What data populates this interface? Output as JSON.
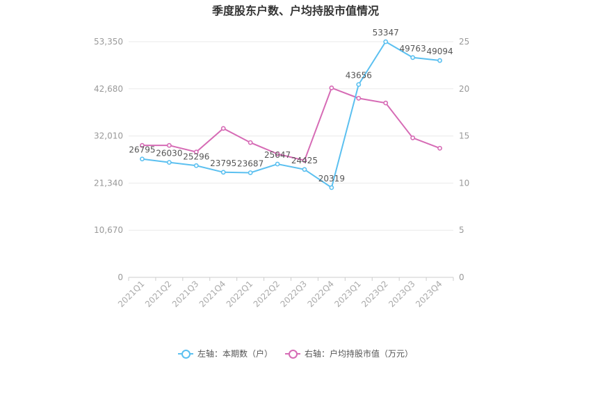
{
  "chart_data": {
    "type": "line",
    "title": "季度股东户数、户均持股市值情况",
    "categories": [
      "2021Q1",
      "2021Q2",
      "2021Q3",
      "2021Q4",
      "2022Q1",
      "2022Q2",
      "2022Q3",
      "2022Q4",
      "2023Q1",
      "2023Q2",
      "2023Q3",
      "2023Q4"
    ],
    "left_axis": {
      "min": 0,
      "max": 53350,
      "ticks": [
        "0",
        "10,670",
        "21,340",
        "32,010",
        "42,680",
        "53,350"
      ]
    },
    "right_axis": {
      "min": 0,
      "max": 25,
      "ticks": [
        "0",
        "5",
        "10",
        "15",
        "20",
        "25"
      ]
    },
    "grid": true,
    "legend_position": "bottom",
    "series": [
      {
        "name": "左轴：本期数（户）",
        "axis": "left",
        "color": "#5bc0f0",
        "values": [
          26795,
          26030,
          25296,
          23795,
          23687,
          25647,
          24425,
          20319,
          43656,
          53347,
          49763,
          49094
        ],
        "labels": [
          "26795",
          "26030",
          "25296",
          "23795",
          "23687",
          "25647",
          "24425",
          "20319",
          "43656",
          "53347",
          "49763",
          "49094"
        ]
      },
      {
        "name": "右轴：户均持股市值（万元）",
        "axis": "right",
        "color": "#d66bb5",
        "values": [
          14.0,
          14.0,
          13.3,
          15.8,
          14.3,
          13.1,
          12.4,
          20.1,
          19.0,
          18.5,
          14.8,
          13.7
        ]
      }
    ]
  }
}
